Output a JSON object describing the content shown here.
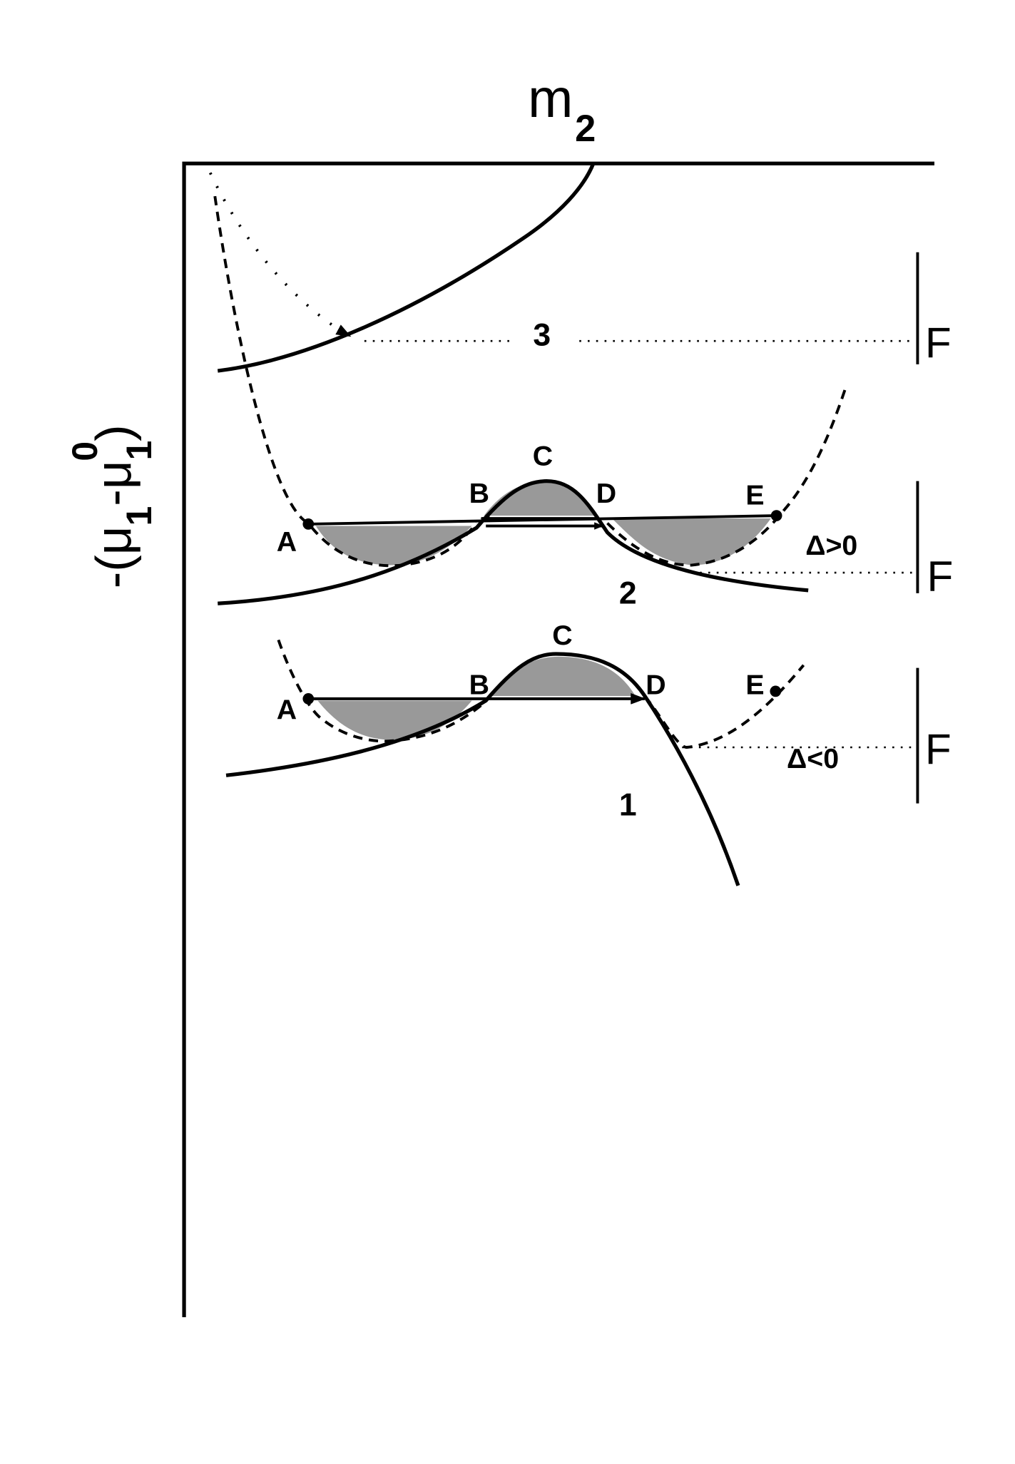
{
  "axes": {
    "x_label": {
      "text": "m",
      "subscript": "2"
    },
    "y_label": {
      "prefix": "-(μ",
      "sub1": "1",
      "mid": "-μ",
      "sub2": "1",
      "sup": "0",
      "suffix": ")"
    }
  },
  "curves": [
    {
      "label": "3",
      "level_mark": "F"
    },
    {
      "label": "2",
      "level_mark": "F",
      "delta": "Δ>0",
      "points": [
        "A",
        "B",
        "C",
        "D",
        "E"
      ]
    },
    {
      "label": "1",
      "level_mark": "F",
      "delta": "Δ<0",
      "points": [
        "A",
        "B",
        "C",
        "D",
        "E"
      ]
    }
  ]
}
